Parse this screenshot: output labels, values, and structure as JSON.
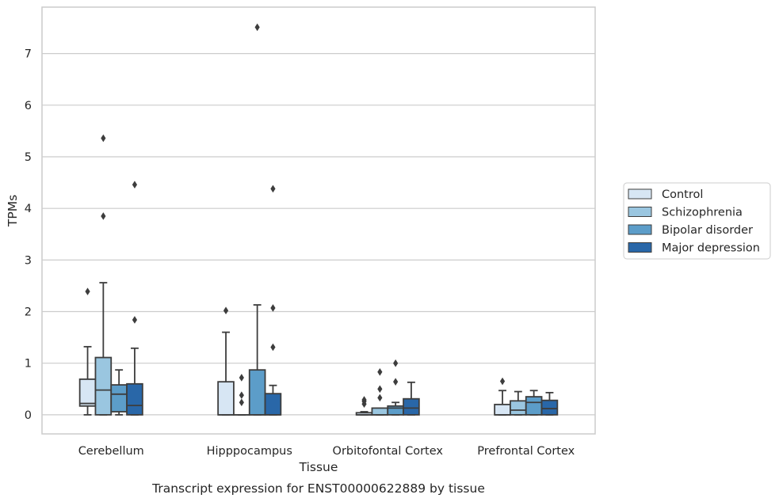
{
  "chart_data": {
    "type": "box",
    "title": "",
    "caption": "Transcript expression for ENST00000622889 by tissue",
    "xlabel": "Tissue",
    "ylabel": "TPMs",
    "ylim": [
      -0.37,
      7.9
    ],
    "yticks": [
      0,
      1,
      2,
      3,
      4,
      5,
      6,
      7
    ],
    "grid": "horizontal",
    "legend_placement": "right",
    "categories": [
      "Cerebellum",
      "Hipppocampus",
      "Orbitofontal Cortex",
      "Prefrontal Cortex"
    ],
    "series": [
      {
        "name": "Control",
        "color": "#d7e6f4",
        "boxes": [
          {
            "whislo": 0.0,
            "q1": 0.17,
            "med": 0.22,
            "q3": 0.69,
            "whishi": 1.32,
            "fliers": [
              2.39
            ]
          },
          {
            "whislo": 0.0,
            "q1": 0.0,
            "med": 0.0,
            "q3": 0.64,
            "whishi": 1.6,
            "fliers": [
              2.02
            ]
          },
          {
            "whislo": 0.0,
            "q1": 0.0,
            "med": 0.0,
            "q3": 0.04,
            "whishi": 0.06,
            "fliers": [
              0.21,
              0.26,
              0.29
            ]
          },
          {
            "whislo": 0.0,
            "q1": 0.0,
            "med": 0.0,
            "q3": 0.2,
            "whishi": 0.47,
            "fliers": [
              0.65
            ]
          }
        ]
      },
      {
        "name": "Schizophrenia",
        "color": "#9ac6e0",
        "boxes": [
          {
            "whislo": 0.0,
            "q1": 0.0,
            "med": 0.48,
            "q3": 1.11,
            "whishi": 2.56,
            "fliers": [
              3.85,
              5.36
            ]
          },
          {
            "whislo": 0.0,
            "q1": 0.0,
            "med": 0.0,
            "q3": 0.0,
            "whishi": 0.0,
            "fliers": [
              0.24,
              0.38,
              0.72
            ]
          },
          {
            "whislo": 0.0,
            "q1": 0.0,
            "med": 0.0,
            "q3": 0.13,
            "whishi": 0.13,
            "fliers": [
              0.33,
              0.5,
              0.83
            ]
          },
          {
            "whislo": 0.0,
            "q1": 0.0,
            "med": 0.09,
            "q3": 0.27,
            "whishi": 0.45,
            "fliers": []
          }
        ]
      },
      {
        "name": "Bipolar disorder",
        "color": "#5c9dc9",
        "boxes": [
          {
            "whislo": 0.0,
            "q1": 0.06,
            "med": 0.4,
            "q3": 0.58,
            "whishi": 0.87,
            "fliers": []
          },
          {
            "whislo": 0.0,
            "q1": 0.0,
            "med": 0.0,
            "q3": 0.87,
            "whishi": 2.13,
            "fliers": [
              7.51
            ]
          },
          {
            "whislo": 0.0,
            "q1": 0.0,
            "med": 0.13,
            "q3": 0.17,
            "whishi": 0.24,
            "fliers": [
              0.64,
              1.0
            ]
          },
          {
            "whislo": 0.0,
            "q1": 0.0,
            "med": 0.24,
            "q3": 0.35,
            "whishi": 0.47,
            "fliers": []
          }
        ]
      },
      {
        "name": "Major depression",
        "color": "#2967a8",
        "boxes": [
          {
            "whislo": 0.0,
            "q1": 0.0,
            "med": 0.18,
            "q3": 0.6,
            "whishi": 1.29,
            "fliers": [
              1.84,
              4.46
            ]
          },
          {
            "whislo": 0.0,
            "q1": 0.0,
            "med": 0.0,
            "q3": 0.41,
            "whishi": 0.57,
            "fliers": [
              1.31,
              2.07,
              4.38
            ]
          },
          {
            "whislo": 0.0,
            "q1": 0.0,
            "med": 0.13,
            "q3": 0.31,
            "whishi": 0.63,
            "fliers": []
          },
          {
            "whislo": 0.0,
            "q1": 0.0,
            "med": 0.12,
            "q3": 0.28,
            "whishi": 0.43,
            "fliers": []
          }
        ]
      }
    ]
  }
}
